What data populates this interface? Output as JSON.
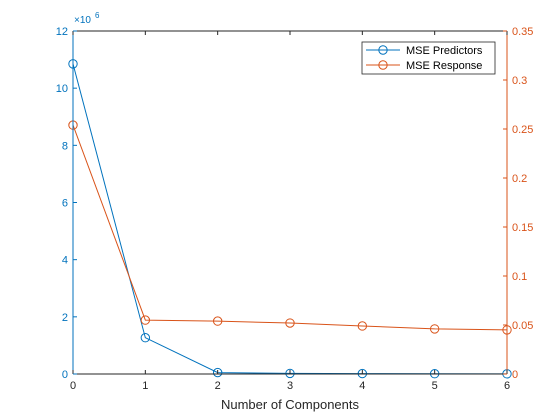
{
  "chart_data": {
    "type": "line",
    "x": [
      0,
      1,
      2,
      3,
      4,
      5,
      6
    ],
    "xlabel": "Number of Components",
    "xlim": [
      0,
      6
    ],
    "xticks": [
      "0",
      "1",
      "2",
      "3",
      "4",
      "5",
      "6"
    ],
    "left_axis": {
      "ylim": [
        0,
        12000000
      ],
      "ticks": [
        0,
        2,
        4,
        6,
        8,
        10,
        12
      ],
      "tick_labels": [
        "0",
        "2",
        "4",
        "6",
        "8",
        "10",
        "12"
      ],
      "exponent_base": "×10",
      "exponent_power": "6",
      "color": "#0072BD"
    },
    "right_axis": {
      "ylim": [
        0,
        0.35
      ],
      "ticks": [
        0,
        0.05,
        0.1,
        0.15,
        0.2,
        0.25,
        0.3,
        0.35
      ],
      "tick_labels": [
        "0",
        "0.05",
        "0.1",
        "0.15",
        "0.2",
        "0.25",
        "0.3",
        "0.35"
      ],
      "color": "#D95319"
    },
    "series": [
      {
        "name": "MSE Predictors",
        "axis": "left",
        "color": "#0072BD",
        "values": [
          10850000,
          1270000,
          50000,
          20000,
          15000,
          10000,
          5000
        ]
      },
      {
        "name": "MSE Response",
        "axis": "right",
        "color": "#D95319",
        "values": [
          0.254,
          0.055,
          0.054,
          0.052,
          0.049,
          0.046,
          0.045
        ]
      }
    ],
    "legend_position": "top-right",
    "grid": false
  }
}
